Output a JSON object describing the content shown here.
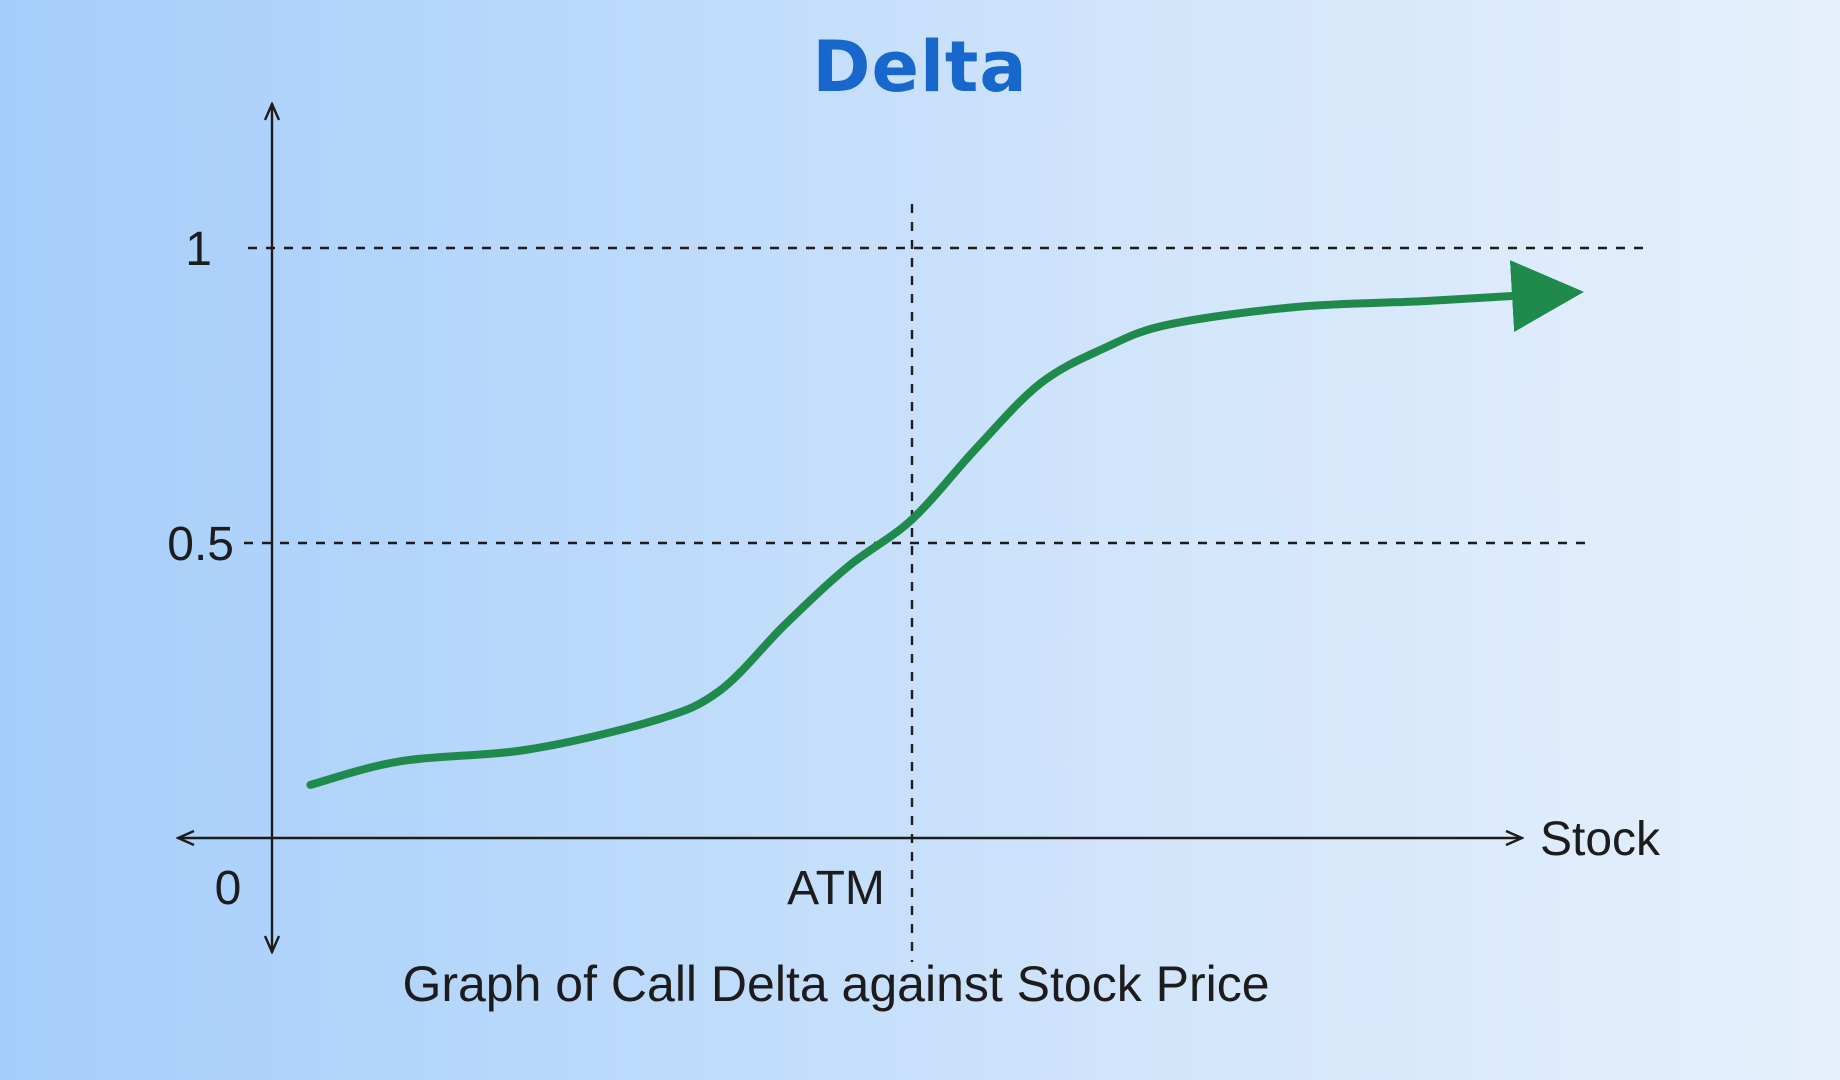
{
  "title": "Delta",
  "chart_data": {
    "type": "line",
    "title": "Delta",
    "caption": "Graph of Call Delta against Stock Price",
    "xlabel": "Stock",
    "ylabel": "",
    "origin_label": "0",
    "x_marker_label": "ATM",
    "y_ticks": [
      "1",
      "0.5"
    ],
    "y_tick_values": [
      1,
      0.5
    ],
    "xlim": [
      0,
      10
    ],
    "ylim": [
      0,
      1
    ],
    "x_marker_value": 5,
    "series": [
      {
        "color": "#1f8a4c",
        "x": [
          0.3,
          1.0,
          2.0,
          3.0,
          3.5,
          4.0,
          4.5,
          5.0,
          5.5,
          6.0,
          6.5,
          7.0,
          8.0,
          9.0,
          9.8
        ],
        "y": [
          0.09,
          0.13,
          0.15,
          0.2,
          0.25,
          0.36,
          0.46,
          0.54,
          0.66,
          0.77,
          0.83,
          0.87,
          0.9,
          0.91,
          0.92
        ]
      }
    ],
    "grid": false,
    "axis_color": "#1c1c1c",
    "guide_color": "#1c1c1c"
  }
}
